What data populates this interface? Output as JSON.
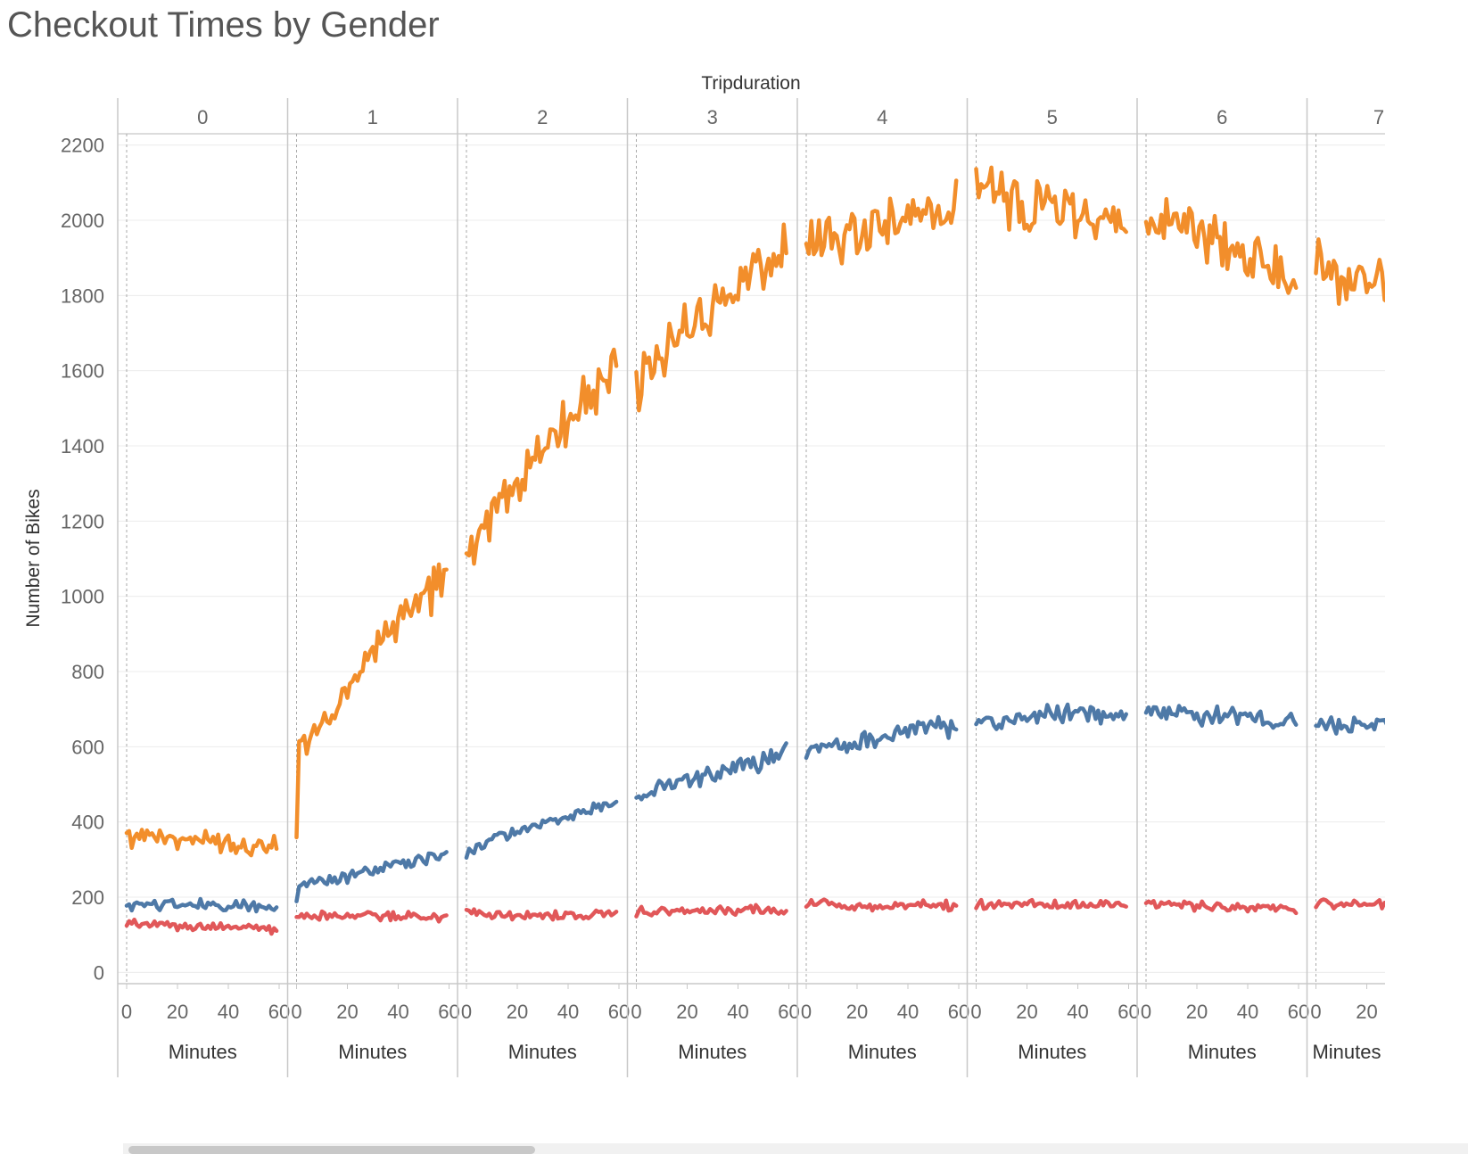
{
  "title": "Checkout Times by Gender",
  "colors": {
    "orange": "#f28e2b",
    "blue": "#4e79a7",
    "red": "#e15759"
  },
  "chart_data": {
    "type": "line",
    "title": "Checkout Times by Gender",
    "column_header": "Tripduration",
    "panels": [
      "0",
      "1",
      "2",
      "3",
      "4",
      "5",
      "6",
      "7"
    ],
    "xlabel": "Minutes",
    "x_ticks": [
      0,
      20,
      40,
      60
    ],
    "x_range": [
      0,
      59
    ],
    "ylabel": "Number of Bikes",
    "y_ticks": [
      0,
      200,
      400,
      600,
      800,
      1000,
      1200,
      1400,
      1600,
      1800,
      2000,
      2200
    ],
    "ylim": [
      -30,
      2230
    ],
    "grid": true,
    "legend": "none",
    "series": [
      {
        "color": "#f28e2b",
        "panels": [
          {
            "x": [
              0,
              10,
              20,
              30,
              40,
              50,
              59
            ],
            "y": [
              355,
              370,
              350,
              355,
              345,
              340,
              340
            ]
          },
          {
            "x": [
              0,
              1,
              10,
              20,
              30,
              40,
              50,
              59
            ],
            "y": [
              370,
              600,
              650,
              760,
              850,
              930,
              1000,
              1050
            ]
          },
          {
            "x": [
              0,
              10,
              20,
              30,
              40,
              50,
              59
            ],
            "y": [
              1100,
              1200,
              1290,
              1400,
              1460,
              1530,
              1600
            ]
          },
          {
            "x": [
              0,
              10,
              20,
              30,
              40,
              50,
              59
            ],
            "y": [
              1560,
              1650,
              1720,
              1770,
              1830,
              1880,
              1910
            ]
          },
          {
            "x": [
              0,
              10,
              20,
              30,
              40,
              50,
              59
            ],
            "y": [
              1950,
              1930,
              1970,
              1990,
              2010,
              2030,
              2040
            ]
          },
          {
            "x": [
              0,
              10,
              20,
              30,
              40,
              50,
              59
            ],
            "y": [
              2070,
              2060,
              2050,
              2040,
              2030,
              2010,
              1980
            ]
          },
          {
            "x": [
              0,
              10,
              20,
              30,
              40,
              50,
              59
            ],
            "y": [
              2030,
              2000,
              1970,
              1950,
              1920,
              1880,
              1820
            ]
          },
          {
            "x": [
              0,
              10,
              20,
              30,
              40,
              50,
              59
            ],
            "y": [
              1880,
              1840,
              1860,
              1830,
              1800,
              1780,
              1760
            ]
          }
        ]
      },
      {
        "color": "#4e79a7",
        "panels": [
          {
            "x": [
              0,
              10,
              20,
              30,
              40,
              50,
              59
            ],
            "y": [
              180,
              180,
              180,
              178,
              178,
              175,
              175
            ]
          },
          {
            "x": [
              0,
              1,
              10,
              20,
              30,
              40,
              50,
              59
            ],
            "y": [
              185,
              240,
              245,
              255,
              270,
              285,
              300,
              315
            ]
          },
          {
            "x": [
              0,
              10,
              20,
              30,
              40,
              50,
              59
            ],
            "y": [
              315,
              355,
              375,
              395,
              415,
              440,
              450
            ]
          },
          {
            "x": [
              0,
              10,
              20,
              30,
              40,
              50,
              59
            ],
            "y": [
              460,
              495,
              515,
              530,
              545,
              565,
              590
            ]
          },
          {
            "x": [
              0,
              10,
              20,
              30,
              40,
              50,
              59
            ],
            "y": [
              590,
              605,
              615,
              630,
              645,
              655,
              635
            ]
          },
          {
            "x": [
              0,
              10,
              20,
              30,
              40,
              50,
              59
            ],
            "y": [
              660,
              670,
              680,
              690,
              685,
              680,
              675
            ]
          },
          {
            "x": [
              0,
              10,
              20,
              30,
              40,
              50,
              59
            ],
            "y": [
              700,
              690,
              685,
              680,
              675,
              670,
              665
            ]
          },
          {
            "x": [
              0,
              10,
              20,
              30,
              40,
              50,
              59
            ],
            "y": [
              665,
              660,
              670,
              660,
              655,
              650,
              655
            ]
          }
        ]
      },
      {
        "color": "#e15759",
        "panels": [
          {
            "x": [
              0,
              10,
              20,
              30,
              40,
              50,
              59
            ],
            "y": [
              130,
              125,
              120,
              122,
              120,
              118,
              115
            ]
          },
          {
            "x": [
              0,
              10,
              20,
              30,
              40,
              50,
              59
            ],
            "y": [
              150,
              150,
              150,
              150,
              150,
              150,
              145
            ]
          },
          {
            "x": [
              0,
              10,
              20,
              30,
              40,
              50,
              59
            ],
            "y": [
              160,
              155,
              150,
              150,
              155,
              155,
              155
            ]
          },
          {
            "x": [
              0,
              10,
              20,
              30,
              40,
              50,
              59
            ],
            "y": [
              160,
              165,
              165,
              165,
              165,
              165,
              160
            ]
          },
          {
            "x": [
              0,
              10,
              20,
              30,
              40,
              50,
              59
            ],
            "y": [
              185,
              180,
              175,
              175,
              180,
              180,
              175
            ]
          },
          {
            "x": [
              0,
              10,
              20,
              30,
              40,
              50,
              59
            ],
            "y": [
              180,
              180,
              180,
              180,
              180,
              180,
              180
            ]
          },
          {
            "x": [
              0,
              10,
              20,
              30,
              40,
              50,
              59
            ],
            "y": [
              180,
              180,
              175,
              175,
              170,
              170,
              165
            ]
          },
          {
            "x": [
              0,
              10,
              20,
              30,
              40,
              50,
              59
            ],
            "y": [
              185,
              180,
              180,
              180,
              180,
              180,
              180
            ]
          }
        ]
      }
    ]
  }
}
